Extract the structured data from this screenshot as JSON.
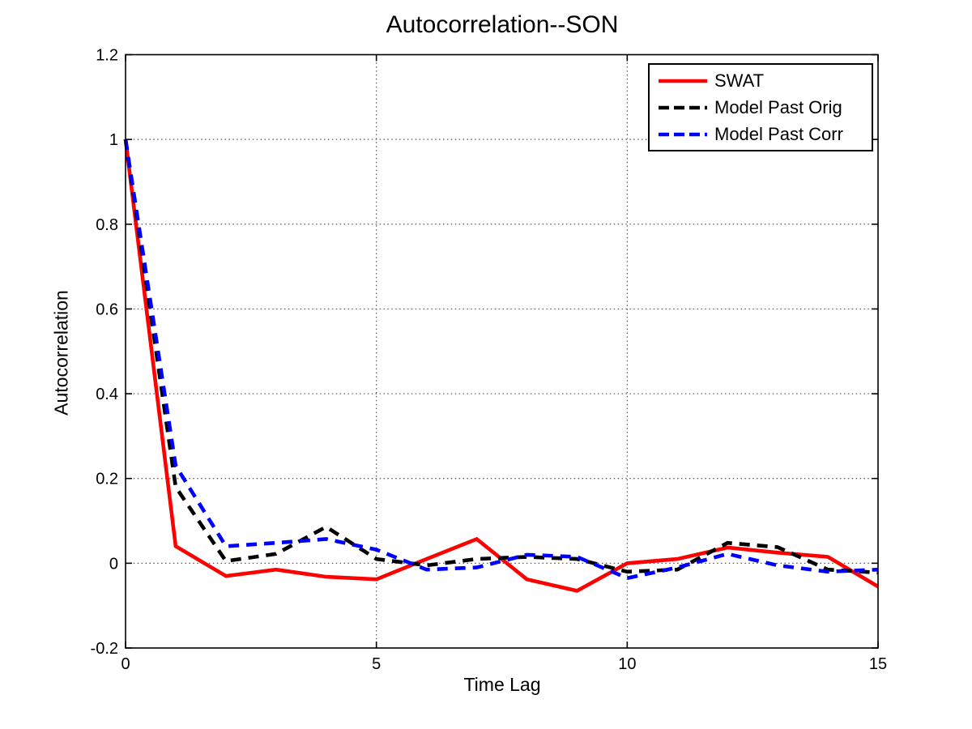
{
  "chart_data": {
    "type": "line",
    "title": "Autocorrelation--SON",
    "xlabel": "Time Lag",
    "ylabel": "Autocorrelation",
    "x": [
      0,
      1,
      2,
      3,
      4,
      5,
      6,
      7,
      8,
      9,
      10,
      11,
      12,
      13,
      14,
      15
    ],
    "series": [
      {
        "name": "SWAT",
        "color": "#ff0000",
        "line_style": "solid",
        "values": [
          1.0,
          0.04,
          -0.03,
          -0.015,
          -0.032,
          -0.038,
          0.01,
          0.057,
          -0.038,
          -0.065,
          0.0,
          0.01,
          0.037,
          0.025,
          0.015,
          -0.055
        ]
      },
      {
        "name": "Model Past Orig",
        "color": "#000000",
        "line_style": "dashed",
        "values": [
          1.0,
          0.18,
          0.005,
          0.022,
          0.086,
          0.01,
          -0.005,
          0.01,
          0.015,
          0.01,
          -0.02,
          -0.015,
          0.048,
          0.038,
          -0.015,
          -0.022
        ]
      },
      {
        "name": "Model Past Corr",
        "color": "#0000ff",
        "line_style": "dashed",
        "values": [
          1.0,
          0.23,
          0.04,
          0.048,
          0.057,
          0.032,
          -0.015,
          -0.01,
          0.02,
          0.015,
          -0.035,
          -0.01,
          0.022,
          -0.005,
          -0.02,
          -0.015
        ]
      }
    ],
    "xlim": [
      0,
      15
    ],
    "ylim": [
      -0.2,
      1.2
    ],
    "xticks": [
      0,
      5,
      10,
      15
    ],
    "xtick_labels": [
      "0",
      "5",
      "10",
      "15"
    ],
    "yticks": [
      -0.2,
      0,
      0.2,
      0.4,
      0.6,
      0.8,
      1,
      1.2
    ],
    "ytick_labels": [
      "-0.2",
      "0",
      "0.2",
      "0.4",
      "0.6",
      "0.8",
      "1",
      "1.2"
    ],
    "grid": true,
    "legend_position": "top-right",
    "axis_color": "#000000",
    "grid_color": "#555555",
    "background_color": "#ffffff"
  }
}
